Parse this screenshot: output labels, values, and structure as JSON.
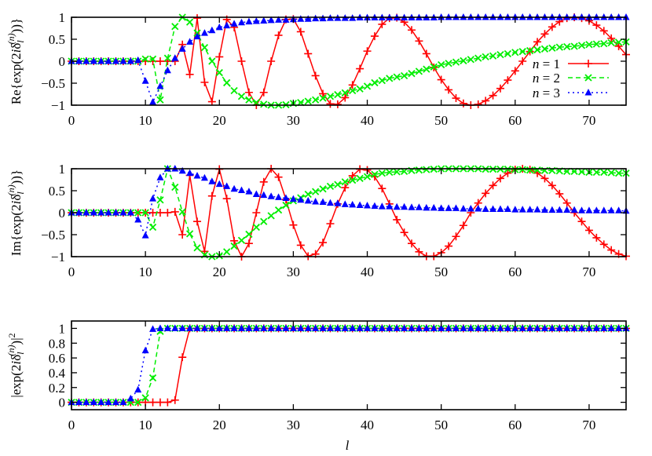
{
  "chart_data": [
    {
      "type": "line",
      "panel": "re",
      "ylabel_parts": [
        {
          "t": "Re{exp(2"
        },
        {
          "t": "i",
          "s": "it"
        },
        {
          "t": "δ"
        },
        {
          "t": "l",
          "s": "sub"
        },
        {
          "t": "(n)",
          "s": "sup"
        },
        {
          "t": "))}"
        }
      ],
      "xlim": [
        0,
        75
      ],
      "ylim": [
        -1,
        1
      ],
      "xticks": [
        0,
        10,
        20,
        30,
        40,
        50,
        60,
        70
      ],
      "xticklabels": [
        "0",
        "10",
        "20",
        "30",
        "40",
        "50",
        "60",
        "70"
      ],
      "yticks": [
        -1,
        -0.5,
        0,
        0.5,
        1
      ],
      "yticklabels": [
        "−1",
        "−0.5",
        "0",
        "0.5",
        "1"
      ],
      "grid": false,
      "legend_position": "right",
      "series_keys": [
        "re"
      ]
    },
    {
      "type": "line",
      "panel": "im",
      "ylabel_parts": [
        {
          "t": "Im{exp(2"
        },
        {
          "t": "i",
          "s": "it"
        },
        {
          "t": "δ"
        },
        {
          "t": "l",
          "s": "sub"
        },
        {
          "t": "(n)",
          "s": "sup"
        },
        {
          "t": "))}"
        }
      ],
      "xlim": [
        0,
        75
      ],
      "ylim": [
        -1,
        1
      ],
      "xticks": [
        0,
        10,
        20,
        30,
        40,
        50,
        60,
        70
      ],
      "xticklabels": [
        "0",
        "10",
        "20",
        "30",
        "40",
        "50",
        "60",
        "70"
      ],
      "yticks": [
        -1,
        -0.5,
        0,
        0.5,
        1
      ],
      "yticklabels": [
        "−1",
        "−0.5",
        "0",
        "0.5",
        "1"
      ],
      "grid": false,
      "series_keys": [
        "im"
      ]
    },
    {
      "type": "line",
      "panel": "abs",
      "ylabel_parts": [
        {
          "t": "|exp(2"
        },
        {
          "t": "i",
          "s": "it"
        },
        {
          "t": "δ"
        },
        {
          "t": "l",
          "s": "sub"
        },
        {
          "t": "(n)",
          "s": "sup"
        },
        {
          "t": ")|"
        },
        {
          "t": "2",
          "s": "sup2"
        }
      ],
      "xlabel": "l",
      "xlim": [
        0,
        75
      ],
      "ylim": [
        -0.1,
        1.1
      ],
      "xticks": [
        0,
        10,
        20,
        30,
        40,
        50,
        60,
        70
      ],
      "xticklabels": [
        "0",
        "10",
        "20",
        "30",
        "40",
        "50",
        "60",
        "70"
      ],
      "yticks": [
        0,
        0.2,
        0.4,
        0.6,
        0.8,
        1
      ],
      "yticklabels": [
        "0",
        "0.2",
        "0.4",
        "0.6",
        "0.8",
        "1"
      ],
      "grid": false,
      "series_keys": [
        "abs"
      ]
    }
  ],
  "x": [
    0,
    1,
    2,
    3,
    4,
    5,
    6,
    7,
    8,
    9,
    10,
    11,
    12,
    13,
    14,
    15,
    16,
    17,
    18,
    19,
    20,
    21,
    22,
    23,
    24,
    25,
    26,
    27,
    28,
    29,
    30,
    31,
    32,
    33,
    34,
    35,
    36,
    37,
    38,
    39,
    40,
    41,
    42,
    43,
    44,
    45,
    46,
    47,
    48,
    49,
    50,
    51,
    52,
    53,
    54,
    55,
    56,
    57,
    58,
    59,
    60,
    61,
    62,
    63,
    64,
    65,
    66,
    67,
    68,
    69,
    70,
    71,
    72,
    73,
    74,
    75
  ],
  "series": [
    {
      "name": "n = 1",
      "color": "#ff0000",
      "marker": "plus",
      "line": "solid",
      "re": [
        0,
        0,
        0,
        0,
        0,
        0,
        0,
        0,
        0,
        0,
        0,
        0,
        0,
        0,
        0,
        0.38,
        -0.3,
        0.98,
        -0.48,
        -0.92,
        0.1,
        0.95,
        0.77,
        0,
        -0.71,
        -1,
        -0.71,
        0,
        0.59,
        0.95,
        0.96,
        0.67,
        0.17,
        -0.33,
        -0.74,
        -0.97,
        -0.98,
        -0.83,
        -0.54,
        -0.17,
        0.23,
        0.57,
        0.84,
        0.98,
        0.99,
        0.89,
        0.71,
        0.46,
        0.17,
        -0.14,
        -0.42,
        -0.65,
        -0.84,
        -0.96,
        -1,
        -0.98,
        -0.9,
        -0.78,
        -0.62,
        -0.43,
        -0.22,
        0,
        0.22,
        0.44,
        0.62,
        0.78,
        0.9,
        0.98,
        1,
        0.98,
        0.92,
        0.82,
        0.69,
        0.52,
        0.34,
        0.15
      ],
      "im": [
        0,
        0,
        0,
        0,
        0,
        0,
        0,
        0,
        0,
        0,
        0,
        0,
        0,
        0,
        0.02,
        -0.5,
        0.85,
        -0.2,
        -0.88,
        0.38,
        0.99,
        0.32,
        -0.64,
        -1,
        -0.7,
        0,
        0.7,
        1,
        0.81,
        0.3,
        -0.28,
        -0.74,
        -0.99,
        -0.94,
        -0.68,
        -0.25,
        0.2,
        0.57,
        0.84,
        0.99,
        0.97,
        0.82,
        0.55,
        0.2,
        -0.16,
        -0.45,
        -0.7,
        -0.89,
        -0.99,
        -0.99,
        -0.91,
        -0.76,
        -0.54,
        -0.29,
        0,
        0.22,
        0.44,
        0.62,
        0.78,
        0.9,
        0.98,
        1,
        0.98,
        0.9,
        0.78,
        0.62,
        0.43,
        0.22,
        0,
        -0.2,
        -0.4,
        -0.57,
        -0.72,
        -0.85,
        -0.94,
        -0.99
      ],
      "abs": [
        0,
        0,
        0,
        0,
        0,
        0,
        0,
        0,
        0,
        0,
        0,
        0,
        0,
        0,
        0.03,
        0.61,
        1,
        1,
        1,
        1,
        1,
        1,
        1,
        1,
        1,
        1,
        1,
        1,
        1,
        1,
        1,
        1,
        1,
        1,
        1,
        1,
        1,
        1,
        1,
        1,
        1,
        1,
        1,
        1,
        1,
        1,
        1,
        1,
        1,
        1,
        1,
        1,
        1,
        1,
        1,
        1,
        1,
        1,
        1,
        1,
        1,
        1,
        1,
        1,
        1,
        1,
        1,
        1,
        1,
        1,
        1,
        1,
        1,
        1,
        1,
        1
      ]
    },
    {
      "name": "n = 2",
      "color": "#00ee00",
      "marker": "cross",
      "line": "dashed",
      "re": [
        0,
        0,
        0,
        0,
        0,
        0,
        0,
        0,
        0,
        0,
        0.05,
        0.05,
        -0.88,
        0.07,
        0.79,
        1,
        0.89,
        0.64,
        0.31,
        0,
        -0.26,
        -0.49,
        -0.67,
        -0.8,
        -0.88,
        -0.94,
        -0.98,
        -1,
        -1,
        -0.99,
        -0.96,
        -0.94,
        -0.91,
        -0.88,
        -0.84,
        -0.8,
        -0.76,
        -0.72,
        -0.67,
        -0.63,
        -0.57,
        -0.49,
        -0.44,
        -0.39,
        -0.36,
        -0.33,
        -0.28,
        -0.23,
        -0.18,
        -0.13,
        -0.08,
        -0.05,
        -0.02,
        0.01,
        0.04,
        0.07,
        0.1,
        0.12,
        0.15,
        0.17,
        0.2,
        0.22,
        0.24,
        0.26,
        0.28,
        0.3,
        0.32,
        0.33,
        0.34,
        0.36,
        0.38,
        0.39,
        0.4,
        0.42,
        0.43,
        0.44
      ],
      "im": [
        0,
        0,
        0,
        0,
        0,
        0,
        0,
        0,
        0,
        0,
        0,
        -0.33,
        0.29,
        1,
        0.58,
        0.02,
        -0.48,
        -0.8,
        -0.96,
        -1,
        -0.98,
        -0.89,
        -0.76,
        -0.63,
        -0.49,
        -0.33,
        -0.2,
        -0.07,
        0.06,
        0.17,
        0.27,
        0.34,
        0.42,
        0.48,
        0.54,
        0.6,
        0.64,
        0.7,
        0.74,
        0.78,
        0.82,
        0.87,
        0.9,
        0.92,
        0.93,
        0.94,
        0.96,
        0.97,
        0.98,
        0.99,
        1,
        1,
        1,
        1,
        1,
        1,
        0.99,
        0.99,
        0.99,
        0.99,
        0.98,
        0.98,
        0.97,
        0.97,
        0.96,
        0.96,
        0.95,
        0.94,
        0.94,
        0.93,
        0.92,
        0.92,
        0.92,
        0.91,
        0.9,
        0.9
      ],
      "abs": [
        0,
        0,
        0,
        0,
        0,
        0,
        0,
        0,
        0,
        0,
        0.06,
        0.33,
        0.96,
        1,
        1,
        1,
        1,
        1,
        1,
        1,
        1,
        1,
        1,
        1,
        1,
        1,
        1,
        1,
        1,
        1,
        1,
        1,
        1,
        1,
        1,
        1,
        1,
        1,
        1,
        1,
        1,
        1,
        1,
        1,
        1,
        1,
        1,
        1,
        1,
        1,
        1,
        1,
        1,
        1,
        1,
        1,
        1,
        1,
        1,
        1,
        1,
        1,
        1,
        1,
        1,
        1,
        1,
        1,
        1,
        1,
        1,
        1,
        1,
        1,
        1,
        1
      ]
    },
    {
      "name": "n = 3",
      "color": "#0000ff",
      "marker": "triangle",
      "line": "dotted",
      "re": [
        0,
        0,
        0,
        0,
        0,
        0,
        0,
        0,
        0,
        0.02,
        -0.45,
        -0.93,
        -0.57,
        -0.21,
        0.07,
        0.28,
        0.44,
        0.56,
        0.64,
        0.7,
        0.77,
        0.81,
        0.85,
        0.88,
        0.9,
        0.91,
        0.92,
        0.93,
        0.94,
        0.94,
        0.95,
        0.96,
        0.96,
        0.97,
        0.97,
        0.98,
        0.98,
        0.98,
        0.98,
        0.99,
        0.99,
        0.99,
        0.99,
        0.99,
        0.99,
        0.99,
        0.99,
        0.99,
        0.99,
        0.99,
        1,
        1,
        1,
        1,
        1,
        1,
        1,
        1,
        1,
        1,
        1,
        1,
        1,
        1,
        1,
        1,
        1,
        1,
        1,
        1,
        1,
        1,
        1,
        1,
        1,
        1
      ],
      "im": [
        0,
        0,
        0,
        0,
        0,
        0,
        0,
        0,
        0,
        -0.16,
        -0.52,
        0.32,
        0.8,
        1,
        1,
        0.95,
        0.9,
        0.84,
        0.79,
        0.71,
        0.65,
        0.6,
        0.54,
        0.51,
        0.48,
        0.42,
        0.4,
        0.37,
        0.35,
        0.33,
        0.31,
        0.29,
        0.27,
        0.25,
        0.24,
        0.22,
        0.21,
        0.19,
        0.18,
        0.17,
        0.16,
        0.15,
        0.14,
        0.14,
        0.13,
        0.13,
        0.12,
        0.12,
        0.11,
        0.11,
        0.1,
        0.1,
        0.1,
        0.09,
        0.09,
        0.09,
        0.08,
        0.08,
        0.08,
        0.08,
        0.07,
        0.07,
        0.07,
        0.07,
        0.06,
        0.06,
        0.06,
        0.06,
        0.06,
        0.05,
        0.05,
        0.05,
        0.05,
        0.05,
        0.05,
        0.04
      ],
      "abs": [
        0,
        0,
        0,
        0,
        0,
        0,
        0,
        0,
        0.05,
        0.17,
        0.7,
        0.99,
        1,
        1,
        1,
        1,
        1,
        1,
        1,
        1,
        1,
        1,
        1,
        1,
        1,
        1,
        1,
        1,
        1,
        1,
        1,
        1,
        1,
        1,
        1,
        1,
        1,
        1,
        1,
        1,
        1,
        1,
        1,
        1,
        1,
        1,
        1,
        1,
        1,
        1,
        1,
        1,
        1,
        1,
        1,
        1,
        1,
        1,
        1,
        1,
        1,
        1,
        1,
        1,
        1,
        1,
        1,
        1,
        1,
        1,
        1,
        1,
        1,
        1,
        1,
        1
      ]
    }
  ]
}
